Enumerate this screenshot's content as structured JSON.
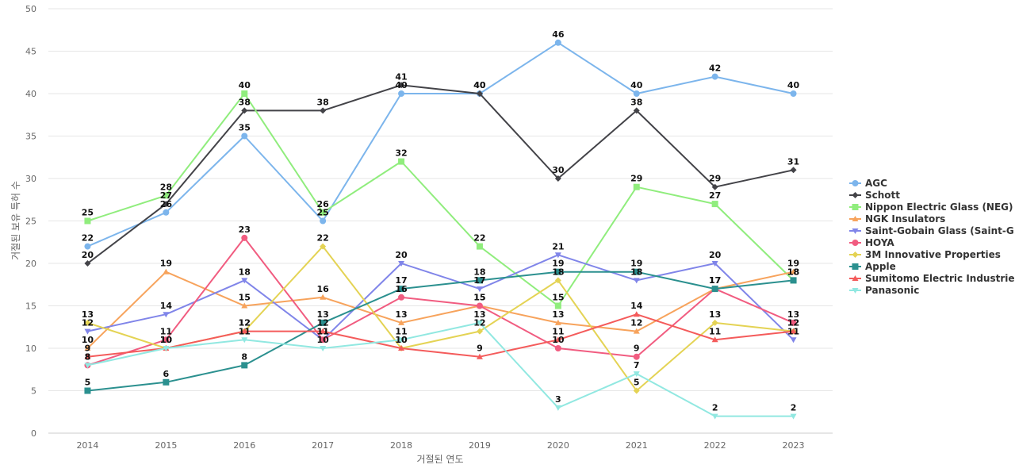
{
  "chart_data": {
    "type": "line",
    "title": "",
    "xlabel": "거절된 연도",
    "ylabel": "거절된 보유 특허 수",
    "categories": [
      "2014",
      "2015",
      "2016",
      "2017",
      "2018",
      "2019",
      "2020",
      "2021",
      "2022",
      "2023"
    ],
    "ylim": [
      0,
      50
    ],
    "yticks": [
      0,
      5,
      10,
      15,
      20,
      25,
      30,
      35,
      40,
      45,
      50
    ],
    "grid": true,
    "legend_position": "right",
    "series": [
      {
        "name": "AGC",
        "color": "#7cb5ec",
        "marker": "circle",
        "values": [
          22,
          26,
          35,
          25,
          40,
          40,
          46,
          40,
          42,
          40
        ]
      },
      {
        "name": "Schott",
        "color": "#434348",
        "marker": "diamond",
        "values": [
          20,
          27,
          38,
          38,
          41,
          40,
          30,
          38,
          29,
          31
        ]
      },
      {
        "name": "Nippon Electric Glass (NEG)",
        "color": "#90ed7d",
        "marker": "square",
        "values": [
          25,
          28,
          40,
          26,
          32,
          22,
          15,
          29,
          27,
          18
        ]
      },
      {
        "name": "NGK Insulators",
        "color": "#f7a35c",
        "marker": "triangle",
        "values": [
          10,
          19,
          15,
          16,
          13,
          15,
          13,
          12,
          17,
          19
        ]
      },
      {
        "name": "Saint-Gobain Glass (Saint-G...",
        "color": "#8085e9",
        "marker": "triangle-down",
        "values": [
          12,
          14,
          18,
          11,
          20,
          17,
          21,
          18,
          20,
          11
        ]
      },
      {
        "name": "HOYA",
        "color": "#f15c80",
        "marker": "circle",
        "values": [
          8,
          11,
          23,
          11,
          16,
          15,
          10,
          9,
          17,
          13
        ]
      },
      {
        "name": "3M Innovative Properties",
        "color": "#e4d354",
        "marker": "diamond",
        "values": [
          13,
          10,
          12,
          22,
          10,
          12,
          18,
          5,
          13,
          12
        ]
      },
      {
        "name": "Apple",
        "color": "#2b908f",
        "marker": "square",
        "values": [
          5,
          6,
          8,
          13,
          17,
          18,
          19,
          19,
          17,
          18
        ]
      },
      {
        "name": "Sumitomo Electric Industries",
        "color": "#f45b5b",
        "marker": "triangle",
        "values": [
          9,
          10,
          12,
          12,
          10,
          9,
          11,
          14,
          11,
          12
        ]
      },
      {
        "name": "Panasonic",
        "color": "#91e8e1",
        "marker": "triangle-down",
        "values": [
          8,
          10,
          11,
          10,
          11,
          13,
          3,
          7,
          2,
          2
        ]
      }
    ]
  }
}
